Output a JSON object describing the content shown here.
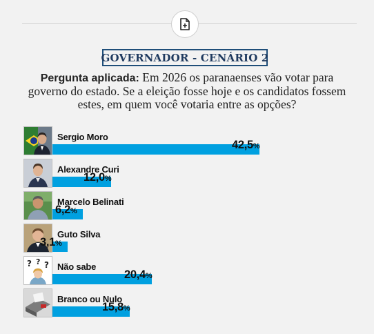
{
  "header": {
    "icon": "document-add-icon"
  },
  "title": "GOVERNADOR - CENÁRIO 2",
  "question": {
    "label": "Pergunta aplicada:",
    "text": "Em 2026 os paranaenses vão votar para governo do estado. Se a eleição fosse hoje e os candidatos fossem estes, em quem você votaria entre as opções?"
  },
  "chart_data": {
    "type": "bar",
    "orientation": "horizontal",
    "title": "GOVERNADOR - CENÁRIO 2",
    "categories": [
      "Sergio Moro",
      "Alexandre Curi",
      "Marcelo Belinati",
      "Guto Silva",
      "Não sabe",
      "Branco ou Nulo"
    ],
    "values": [
      42.5,
      12.0,
      6.2,
      3.1,
      20.4,
      15.8
    ],
    "value_labels": [
      "42,5",
      "12,0",
      "6,2",
      "3,1",
      "20,4",
      "15,8"
    ],
    "unit": "%",
    "bar_color": "#00a0e0",
    "grid": false,
    "legend": "none"
  },
  "rows": [
    {
      "name": "Sergio Moro",
      "pct": "42,5",
      "sym": "%",
      "photo": "candidate-photo-sergio-moro"
    },
    {
      "name": "Alexandre Curi",
      "pct": "12,0",
      "sym": "%",
      "photo": "candidate-photo-alexandre-curi"
    },
    {
      "name": "Marcelo Belinati",
      "pct": "6,2",
      "sym": "%",
      "photo": "candidate-photo-marcelo-belinati"
    },
    {
      "name": "Guto Silva",
      "pct": "3,1",
      "sym": "%",
      "photo": "candidate-photo-guto-silva"
    },
    {
      "name": "Não sabe",
      "pct": "20,4",
      "sym": "%",
      "photo": "question-marks-illustration"
    },
    {
      "name": "Branco ou Nulo",
      "pct": "15,8",
      "sym": "%",
      "photo": "ballot-box-illustration"
    }
  ]
}
